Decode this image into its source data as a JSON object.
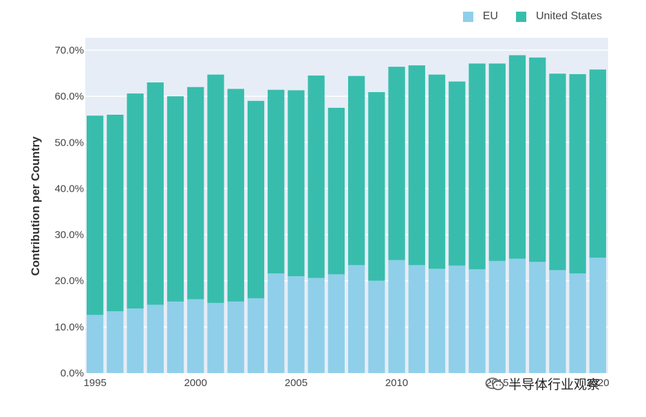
{
  "legend": {
    "items": [
      {
        "label": "EU",
        "color": "#8fcfe9"
      },
      {
        "label": "United States",
        "color": "#38bdac"
      }
    ]
  },
  "watermark": {
    "text": "半导体行业观察"
  },
  "chart_data": {
    "type": "bar",
    "stacked": true,
    "ylabel": "Contribution per Country",
    "xlabel": "",
    "x_tick_labels": [
      "1995",
      "2000",
      "2005",
      "2010",
      "2015",
      "2020"
    ],
    "y_tick_labels": [
      "0.0%",
      "10.0%",
      "20.0%",
      "30.0%",
      "40.0%",
      "50.0%",
      "60.0%",
      "70.0%"
    ],
    "ylim": [
      0,
      70
    ],
    "grid": true,
    "legend_position": "top-right",
    "categories": [
      1995,
      1996,
      1997,
      1998,
      1999,
      2000,
      2001,
      2002,
      2003,
      2004,
      2005,
      2006,
      2007,
      2008,
      2009,
      2010,
      2011,
      2012,
      2013,
      2014,
      2015,
      2016,
      2017,
      2018,
      2019,
      2020
    ],
    "series": [
      {
        "name": "EU",
        "color": "#8fcfe9",
        "values": [
          12.6,
          13.4,
          14.0,
          14.8,
          15.5,
          16.0,
          15.2,
          15.5,
          16.2,
          21.6,
          21.0,
          20.6,
          21.4,
          23.4,
          20.0,
          24.5,
          23.4,
          22.6,
          23.3,
          22.5,
          24.3,
          24.8,
          24.1,
          22.3,
          21.6,
          25.0
        ]
      },
      {
        "name": "United States",
        "color": "#38bdac",
        "values": [
          43.2,
          42.6,
          46.6,
          48.2,
          44.5,
          46.0,
          49.5,
          46.1,
          42.8,
          39.8,
          40.3,
          43.9,
          36.1,
          41.0,
          40.9,
          41.9,
          43.3,
          42.1,
          39.9,
          44.6,
          42.8,
          44.1,
          44.3,
          42.6,
          43.2,
          40.8
        ]
      }
    ]
  }
}
